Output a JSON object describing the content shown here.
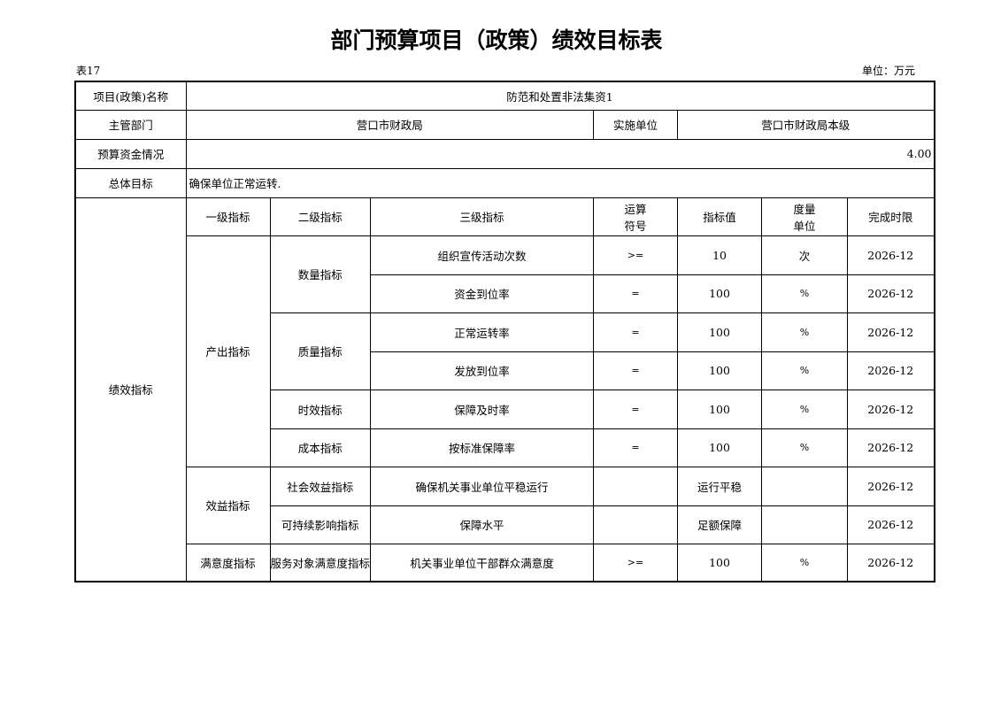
{
  "title": "部门预算项目（政策）绩效目标表",
  "table_no": "表17",
  "unit": "单位：万元",
  "info": {
    "project_name_label": "项目(政策)名称",
    "project_name": "防范和处置非法集资1",
    "dept_label": "主管部门",
    "dept": "营口市财政局",
    "impl_label": "实施单位",
    "impl": "营口市财政局本级",
    "budget_label": "预算资金情况",
    "budget": "4.00",
    "goal_label": "总体目标",
    "goal": "确保单位正常运转."
  },
  "perf_label": "绩效指标",
  "headers": {
    "l1": "一级指标",
    "l2": "二级指标",
    "l3": "三级指标",
    "op": "运算\n符号",
    "value": "指标值",
    "unit": "度量\n单位",
    "deadline": "完成时限"
  },
  "groups": {
    "output": "产出指标",
    "benefit": "效益指标",
    "satisfaction": "满意度指标"
  },
  "subgroups": {
    "quantity": "数量指标",
    "quality": "质量指标",
    "time": "时效指标",
    "cost": "成本指标",
    "social": "社会效益指标",
    "sustain": "可持续影响指标",
    "service": "服务对象满意度指标"
  },
  "rows": [
    {
      "l3": "组织宣传活动次数",
      "op": ">=",
      "value": "10",
      "unit": "次",
      "deadline": "2026-12"
    },
    {
      "l3": "资金到位率",
      "op": "=",
      "value": "100",
      "unit": "%",
      "deadline": "2026-12"
    },
    {
      "l3": "正常运转率",
      "op": "=",
      "value": "100",
      "unit": "%",
      "deadline": "2026-12"
    },
    {
      "l3": "发放到位率",
      "op": "=",
      "value": "100",
      "unit": "%",
      "deadline": "2026-12"
    },
    {
      "l3": "保障及时率",
      "op": "=",
      "value": "100",
      "unit": "%",
      "deadline": "2026-12"
    },
    {
      "l3": "按标准保障率",
      "op": "=",
      "value": "100",
      "unit": "%",
      "deadline": "2026-12"
    },
    {
      "l3": "确保机关事业单位平稳运行",
      "op": "",
      "value": "运行平稳",
      "unit": "",
      "deadline": "2026-12"
    },
    {
      "l3": "保障水平",
      "op": "",
      "value": "足额保障",
      "unit": "",
      "deadline": "2026-12"
    },
    {
      "l3": "机关事业单位干部群众满意度",
      "op": ">=",
      "value": "100",
      "unit": "%",
      "deadline": "2026-12"
    }
  ]
}
